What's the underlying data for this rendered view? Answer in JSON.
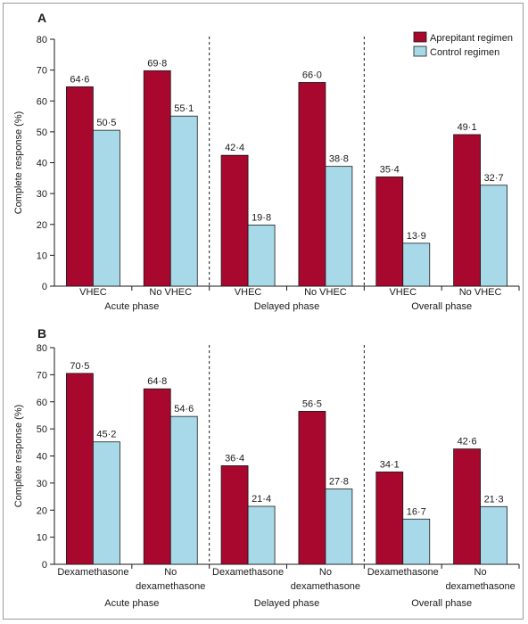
{
  "legend": {
    "items": [
      {
        "label": "Aprepitant regimen",
        "color": "#a8072e"
      },
      {
        "label": "Control regimen",
        "color": "#a8d9e9"
      }
    ]
  },
  "chart_data": [
    {
      "type": "bar",
      "panel_label": "A",
      "ylabel": "Complete response (%)",
      "ylim": [
        0,
        80
      ],
      "yticks": [
        0,
        10,
        20,
        30,
        40,
        50,
        60,
        70,
        80
      ],
      "grid": false,
      "legend_position": "top-right",
      "groups": [
        "Acute phase",
        "Delayed phase",
        "Overall phase"
      ],
      "categories": [
        [
          "VHEC"
        ],
        [
          "No VHEC"
        ],
        [
          "VHEC"
        ],
        [
          "No VHEC"
        ],
        [
          "VHEC"
        ],
        [
          "No VHEC"
        ]
      ],
      "series": [
        {
          "name": "Aprepitant regimen",
          "values": [
            64.6,
            69.8,
            42.4,
            66.0,
            35.4,
            49.1
          ],
          "labels": [
            "64·6",
            "69·8",
            "42·4",
            "66·0",
            "35·4",
            "49·1"
          ]
        },
        {
          "name": "Control regimen",
          "values": [
            50.5,
            55.1,
            19.8,
            38.8,
            13.9,
            32.7
          ],
          "labels": [
            "50·5",
            "55·1",
            "19·8",
            "38·8",
            "13·9",
            "32·7"
          ]
        }
      ]
    },
    {
      "type": "bar",
      "panel_label": "B",
      "ylabel": "Complete response (%)",
      "ylim": [
        0,
        80
      ],
      "yticks": [
        0,
        10,
        20,
        30,
        40,
        50,
        60,
        70,
        80
      ],
      "grid": false,
      "groups": [
        "Acute phase",
        "Delayed phase",
        "Overall phase"
      ],
      "categories": [
        [
          "Dexamethasone"
        ],
        [
          "No",
          "dexamethasone"
        ],
        [
          "Dexamethasone"
        ],
        [
          "No",
          "dexamethasone"
        ],
        [
          "Dexamethasone"
        ],
        [
          "No",
          "dexamethasone"
        ]
      ],
      "series": [
        {
          "name": "Aprepitant regimen",
          "values": [
            70.5,
            64.8,
            36.4,
            56.5,
            34.1,
            42.6
          ],
          "labels": [
            "70·5",
            "64·8",
            "36·4",
            "56·5",
            "34·1",
            "42·6"
          ]
        },
        {
          "name": "Control regimen",
          "values": [
            45.2,
            54.6,
            21.4,
            27.8,
            16.7,
            21.3
          ],
          "labels": [
            "45·2",
            "54·6",
            "21·4",
            "27·8",
            "16·7",
            "21·3"
          ]
        }
      ]
    }
  ]
}
